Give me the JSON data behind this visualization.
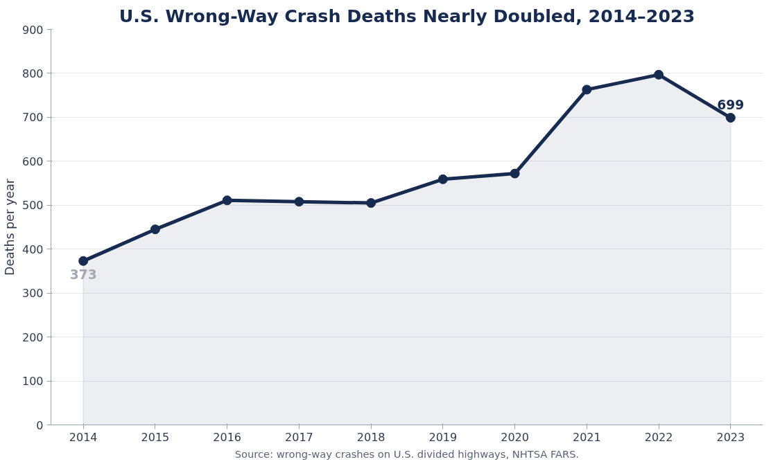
{
  "chart_data": {
    "type": "area",
    "title": "U.S. Wrong-Way Crash Deaths Nearly Doubled, 2014–2023",
    "ylabel": "Deaths per year",
    "x": [
      2014,
      2015,
      2016,
      2017,
      2018,
      2019,
      2020,
      2021,
      2022,
      2023
    ],
    "series": [
      {
        "color": "#172a4f",
        "values": [
          373,
          445,
          511,
          508,
          505,
          559,
          572,
          763,
          797,
          699
        ]
      }
    ],
    "xlim": [
      2013.55,
      2023.45
    ],
    "xticks": [
      2014,
      2015,
      2016,
      2017,
      2018,
      2019,
      2020,
      2021,
      2022,
      2023
    ],
    "ylim": [
      0,
      900
    ],
    "yticks": [
      0,
      100,
      200,
      300,
      400,
      500,
      600,
      700,
      800,
      900
    ],
    "grid": "y",
    "marker": "circle",
    "line_style": "solid",
    "annotations": [
      {
        "text": "373",
        "x": 2014,
        "y": 373
      },
      {
        "text": "699",
        "x": 2023,
        "y": 699
      },
      "Source: wrong-way crashes on U.S. divided highways, NHTSA FARS."
    ]
  }
}
